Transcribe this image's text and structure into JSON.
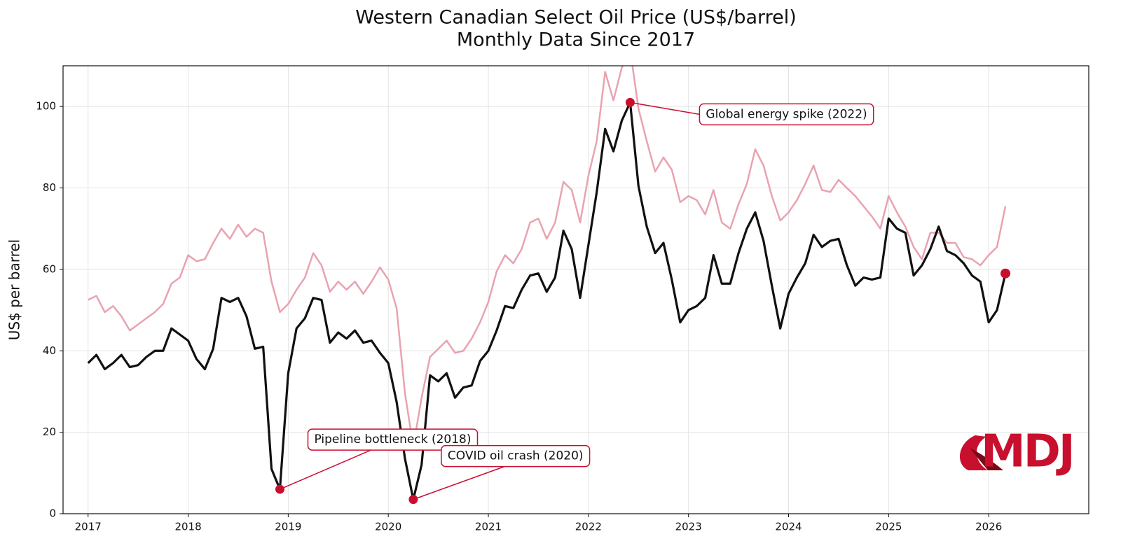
{
  "chart_data": {
    "type": "line",
    "title": "Western Canadian Select Oil Price (US$/barrel)",
    "subtitle": "Monthly Data Since 2017",
    "y_label": "US$ per barrel",
    "x": [
      2017,
      2017.083,
      2017.167,
      2017.25,
      2017.333,
      2017.417,
      2017.5,
      2017.583,
      2017.667,
      2017.75,
      2017.833,
      2017.917,
      2018,
      2018.083,
      2018.167,
      2018.25,
      2018.333,
      2018.417,
      2018.5,
      2018.583,
      2018.667,
      2018.75,
      2018.833,
      2018.917,
      2019,
      2019.083,
      2019.167,
      2019.25,
      2019.333,
      2019.417,
      2019.5,
      2019.583,
      2019.667,
      2019.75,
      2019.833,
      2019.917,
      2020,
      2020.083,
      2020.167,
      2020.25,
      2020.333,
      2020.417,
      2020.5,
      2020.583,
      2020.667,
      2020.75,
      2020.833,
      2020.917,
      2021,
      2021.083,
      2021.167,
      2021.25,
      2021.333,
      2021.417,
      2021.5,
      2021.583,
      2021.667,
      2021.75,
      2021.833,
      2021.917,
      2022,
      2022.083,
      2022.167,
      2022.25,
      2022.333,
      2022.417,
      2022.5,
      2022.583,
      2022.667,
      2022.75,
      2022.833,
      2022.917,
      2023,
      2023.083,
      2023.167,
      2023.25,
      2023.333,
      2023.417,
      2023.5,
      2023.583,
      2023.667,
      2023.75,
      2023.833,
      2023.917,
      2024,
      2024.083,
      2024.167,
      2024.25,
      2024.333,
      2024.417,
      2024.5,
      2024.583,
      2024.667,
      2024.75,
      2024.833,
      2024.917,
      2025,
      2025.083,
      2025.167,
      2025.25,
      2025.333,
      2025.417,
      2025.5,
      2025.583,
      2025.667,
      2025.75,
      2025.833,
      2025.917,
      2026,
      2026.083,
      2026.167
    ],
    "series": [
      {
        "color": "#e8a3b0",
        "values": [
          52.5,
          53.5,
          49.5,
          51,
          48.5,
          45,
          46.5,
          48,
          49.5,
          51.5,
          56.5,
          58,
          63.5,
          62,
          62.5,
          66.5,
          70,
          67.5,
          71,
          68,
          70,
          69,
          57,
          49.5,
          51.5,
          55,
          58,
          64,
          61,
          54.5,
          57,
          55,
          57,
          54,
          57,
          60.5,
          57.5,
          50.5,
          29.5,
          16.5,
          28.5,
          38.5,
          40.5,
          42.5,
          39.5,
          40,
          43,
          47,
          52,
          59.5,
          63.5,
          61.5,
          65,
          71.5,
          72.5,
          67.5,
          71.5,
          81.5,
          79.5,
          71.5,
          83,
          91.5,
          108.5,
          101.5,
          109.5,
          114,
          99.5,
          91.5,
          84,
          87.5,
          84.5,
          76.5,
          78,
          77,
          73.5,
          79.5,
          71.5,
          70,
          76,
          81,
          89.5,
          85.5,
          78,
          72,
          74,
          77,
          81,
          85.5,
          79.5,
          79,
          82,
          80,
          78,
          75.5,
          73,
          70,
          78,
          74,
          70.5,
          65.5,
          62.5,
          69,
          69,
          66.5,
          66.5,
          63,
          62.5,
          61,
          63.5,
          65.5,
          75.5
        ]
      },
      {
        "color": "#111111",
        "values": [
          37,
          39,
          35.5,
          37,
          39,
          36,
          36.5,
          38.5,
          40,
          40,
          45.5,
          44,
          42.5,
          38,
          35.5,
          40.5,
          53,
          52,
          53,
          48.5,
          40.5,
          41,
          11,
          6,
          34.5,
          45.5,
          48,
          53,
          52.5,
          42,
          44.5,
          43,
          45,
          42,
          42.5,
          39.5,
          37,
          27.5,
          13.5,
          3.5,
          12,
          34,
          32.5,
          34.5,
          28.5,
          31,
          31.5,
          37.5,
          40,
          45,
          51,
          50.5,
          55,
          58.5,
          59,
          54.5,
          58,
          69.5,
          65,
          53,
          66,
          79,
          94.5,
          89,
          96.5,
          101,
          80.5,
          70.5,
          64,
          66.5,
          57.5,
          47,
          50,
          51,
          53,
          63.5,
          56.5,
          56.5,
          64,
          70,
          74,
          67,
          56,
          45.5,
          54,
          58,
          61.5,
          68.5,
          65.5,
          67,
          67.5,
          61,
          56,
          58,
          57.5,
          58,
          72.5,
          70,
          69,
          58.5,
          61,
          65,
          70.5,
          64.5,
          63.5,
          61.5,
          58.5,
          57,
          47,
          50,
          59
        ]
      }
    ],
    "annotations": [
      {
        "text": "Pipeline bottleneck (2018)",
        "x": 2018.917,
        "y": 6
      },
      {
        "text": "COVID oil crash (2020)",
        "x": 2020.25,
        "y": 3.5
      },
      {
        "text": "Global energy spike (2022)",
        "x": 2022.417,
        "y": 101
      }
    ],
    "marker_color": "#c8102e",
    "xlim": [
      2016.75,
      2027
    ],
    "ylim": [
      0,
      110
    ],
    "xticks": [
      2017,
      2018,
      2019,
      2020,
      2021,
      2022,
      2023,
      2024,
      2025,
      2026
    ],
    "yticks": [
      0,
      20,
      40,
      60,
      80,
      100
    ],
    "grid": true,
    "logo_text": "MDJ"
  }
}
